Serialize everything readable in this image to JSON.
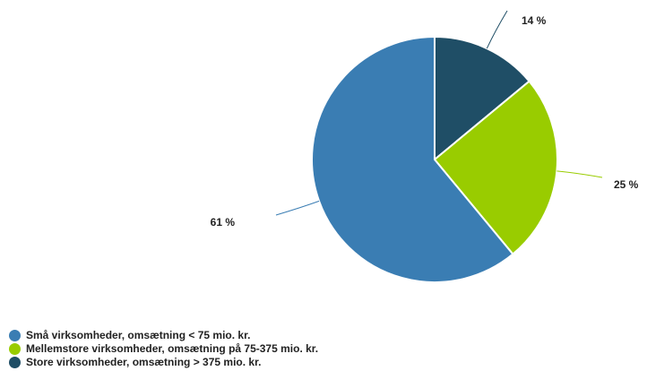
{
  "chart_data": {
    "type": "pie",
    "categories": [
      "Små virksomheder, omsætning < 75 mio. kr.",
      "Mellemstore virksomheder, omsætning på 75-375 mio. kr.",
      "Store virksomheder, omsætning > 375 mio. kr."
    ],
    "values": [
      61,
      25,
      14
    ],
    "data_labels": [
      "61 %",
      "25 %",
      "14 %"
    ],
    "colors": [
      "#3a7db3",
      "#99cc00",
      "#1f4e66"
    ],
    "legend_position": "bottom-left",
    "title": ""
  }
}
